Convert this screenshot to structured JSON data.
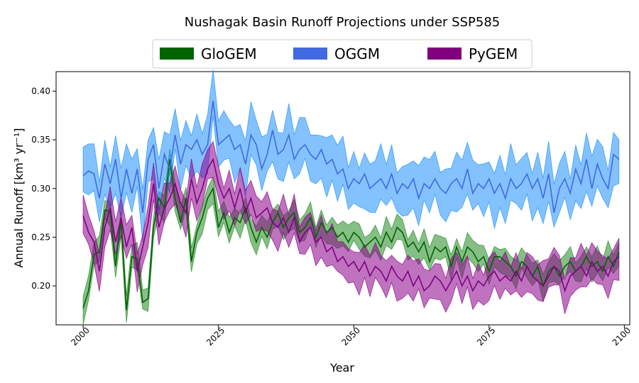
{
  "chart_data": {
    "type": "line",
    "title": "Nushagak Basin Runoff Projections under SSP585",
    "xlabel": "Year",
    "ylabel": "Annual Runoff [km³ yr⁻¹]",
    "xlim": [
      1995,
      2101
    ],
    "ylim": [
      0.16,
      0.42
    ],
    "xticks": [
      2000,
      2025,
      2050,
      2075,
      2100
    ],
    "yticks": [
      0.2,
      0.25,
      0.3,
      0.35,
      0.4
    ],
    "ytick_labels": [
      "0.20",
      "0.25",
      "0.30",
      "0.35",
      "0.40"
    ],
    "legend_position": "top-center",
    "x_start": 2000,
    "series": [
      {
        "name": "GloGEM",
        "color": "#006400",
        "fill_color": "#228B22",
        "band_halfwidth": 0.012,
        "values": [
          0.177,
          0.195,
          0.232,
          0.235,
          0.278,
          0.276,
          0.22,
          0.268,
          0.175,
          0.23,
          0.228,
          0.183,
          0.187,
          0.26,
          0.29,
          0.28,
          0.33,
          0.29,
          0.265,
          0.29,
          0.225,
          0.255,
          0.27,
          0.29,
          0.3,
          0.26,
          0.275,
          0.255,
          0.27,
          0.265,
          0.28,
          0.26,
          0.245,
          0.26,
          0.25,
          0.265,
          0.275,
          0.26,
          0.27,
          0.275,
          0.255,
          0.26,
          0.27,
          0.25,
          0.265,
          0.255,
          0.26,
          0.25,
          0.255,
          0.245,
          0.255,
          0.25,
          0.24,
          0.245,
          0.25,
          0.24,
          0.255,
          0.245,
          0.26,
          0.255,
          0.24,
          0.245,
          0.235,
          0.245,
          0.225,
          0.24,
          0.235,
          0.24,
          0.22,
          0.24,
          0.225,
          0.24,
          0.235,
          0.225,
          0.23,
          0.215,
          0.23,
          0.23,
          0.225,
          0.22,
          0.21,
          0.225,
          0.22,
          0.21,
          0.22,
          0.2,
          0.215,
          0.22,
          0.21,
          0.22,
          0.225,
          0.215,
          0.22,
          0.23,
          0.22,
          0.225,
          0.215,
          0.23,
          0.22,
          0.235
        ]
      },
      {
        "name": "OGGM",
        "color": "#4169E1",
        "fill_color": "#1E90FF",
        "band_halfwidth": 0.025,
        "values": [
          0.313,
          0.318,
          0.315,
          0.29,
          0.325,
          0.305,
          0.33,
          0.29,
          0.32,
          0.295,
          0.32,
          0.275,
          0.33,
          0.345,
          0.3,
          0.335,
          0.32,
          0.355,
          0.325,
          0.345,
          0.34,
          0.35,
          0.335,
          0.345,
          0.39,
          0.345,
          0.35,
          0.355,
          0.34,
          0.345,
          0.325,
          0.355,
          0.345,
          0.32,
          0.335,
          0.36,
          0.335,
          0.34,
          0.355,
          0.33,
          0.34,
          0.345,
          0.335,
          0.33,
          0.34,
          0.325,
          0.33,
          0.315,
          0.32,
          0.3,
          0.31,
          0.305,
          0.315,
          0.3,
          0.305,
          0.31,
          0.3,
          0.315,
          0.295,
          0.305,
          0.3,
          0.31,
          0.29,
          0.305,
          0.3,
          0.31,
          0.3,
          0.295,
          0.305,
          0.31,
          0.3,
          0.32,
          0.295,
          0.305,
          0.3,
          0.31,
          0.295,
          0.305,
          0.29,
          0.31,
          0.3,
          0.305,
          0.315,
          0.3,
          0.31,
          0.29,
          0.315,
          0.275,
          0.3,
          0.31,
          0.295,
          0.32,
          0.305,
          0.33,
          0.3,
          0.325,
          0.31,
          0.3,
          0.335,
          0.33
        ]
      },
      {
        "name": "PyGEM",
        "color": "#800080",
        "fill_color": "#8B008B",
        "band_halfwidth": 0.018,
        "values": [
          0.272,
          0.255,
          0.245,
          0.215,
          0.26,
          0.28,
          0.245,
          0.27,
          0.24,
          0.26,
          0.215,
          0.24,
          0.265,
          0.305,
          0.26,
          0.28,
          0.29,
          0.305,
          0.285,
          0.275,
          0.31,
          0.285,
          0.3,
          0.32,
          0.33,
          0.305,
          0.29,
          0.3,
          0.28,
          0.3,
          0.275,
          0.29,
          0.27,
          0.275,
          0.28,
          0.265,
          0.26,
          0.27,
          0.255,
          0.27,
          0.245,
          0.255,
          0.26,
          0.245,
          0.25,
          0.235,
          0.24,
          0.225,
          0.23,
          0.22,
          0.225,
          0.215,
          0.225,
          0.21,
          0.22,
          0.215,
          0.205,
          0.22,
          0.21,
          0.205,
          0.215,
          0.2,
          0.21,
          0.195,
          0.2,
          0.21,
          0.205,
          0.195,
          0.205,
          0.215,
          0.2,
          0.21,
          0.195,
          0.205,
          0.2,
          0.21,
          0.215,
          0.205,
          0.21,
          0.205,
          0.215,
          0.205,
          0.22,
          0.21,
          0.205,
          0.2,
          0.21,
          0.22,
          0.215,
          0.195,
          0.21,
          0.215,
          0.22,
          0.21,
          0.225,
          0.215,
          0.22,
          0.21,
          0.225,
          0.23
        ]
      }
    ]
  }
}
